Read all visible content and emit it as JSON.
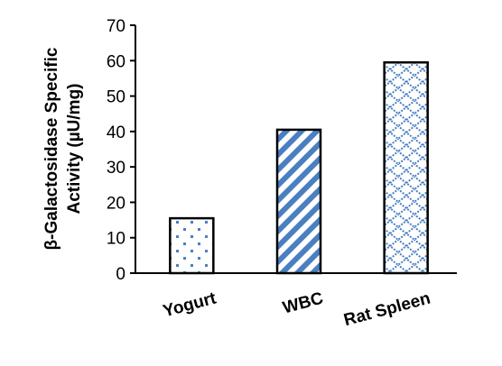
{
  "chart_data": {
    "type": "bar",
    "categories": [
      "Yogurt",
      "WBC",
      "Rat Spleen"
    ],
    "values": [
      15.5,
      40.5,
      59.5
    ],
    "title": "",
    "xlabel": "",
    "ylabel_lines": [
      "β-Galactosidase Specific",
      "Activity (µU/mg)"
    ],
    "ylim": [
      0,
      70
    ],
    "yticks": [
      "0",
      "10",
      "20",
      "30",
      "40",
      "50",
      "60",
      "70"
    ],
    "grid": false,
    "colors": {
      "pattern": "#4a7fc1",
      "outline": "#000000",
      "background": "#ffffff"
    },
    "fill_patterns": [
      "dots",
      "diagonal-stripes",
      "lattice"
    ]
  }
}
